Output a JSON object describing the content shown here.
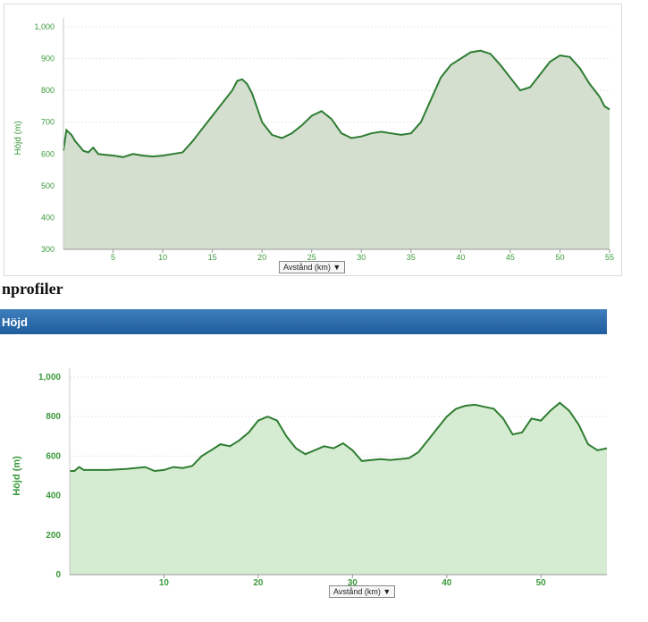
{
  "section_title": "nprofiler",
  "header_title": "Höjd",
  "colors": {
    "line": "#2e7d32",
    "fill1": "#d4dfcf",
    "fill2": "#d6ecd2",
    "tick": "#3a9a3a",
    "header": "#2a6aad"
  },
  "chart_data": [
    {
      "type": "area",
      "ylabel": "Höjd (m)",
      "xlabel_select": "Avstånd (km)",
      "select_arrow": "▼",
      "x_ticks": [
        5,
        10,
        15,
        20,
        25,
        30,
        35,
        40,
        45,
        50,
        55
      ],
      "y_ticks": [
        300,
        400,
        500,
        600,
        700,
        800,
        900,
        1000
      ],
      "y_tick_labels": [
        "300",
        "400",
        "500",
        "600",
        "700",
        "800",
        "900",
        "1,000"
      ],
      "xlim": [
        0,
        55
      ],
      "ylim": [
        300,
        1000
      ],
      "x": [
        0,
        0.3,
        0.8,
        1.2,
        1.6,
        2,
        2.5,
        3,
        3.5,
        4,
        5,
        6,
        7,
        8,
        9,
        10,
        11,
        12,
        13,
        14,
        15,
        16,
        17,
        17.5,
        18,
        18.5,
        19,
        20,
        21,
        22,
        23,
        24,
        25,
        26,
        27,
        28,
        29,
        30,
        31,
        32,
        33,
        34,
        35,
        36,
        37,
        38,
        39,
        40,
        41,
        42,
        43,
        44,
        45,
        46,
        47,
        48,
        49,
        50,
        51,
        52,
        53,
        54,
        54.5,
        55
      ],
      "values": [
        610,
        675,
        660,
        640,
        625,
        610,
        605,
        620,
        600,
        598,
        595,
        590,
        600,
        595,
        592,
        595,
        600,
        605,
        640,
        680,
        720,
        760,
        800,
        830,
        835,
        820,
        790,
        700,
        660,
        650,
        665,
        690,
        720,
        735,
        710,
        665,
        650,
        655,
        665,
        670,
        665,
        660,
        665,
        700,
        770,
        840,
        880,
        900,
        920,
        925,
        915,
        880,
        840,
        800,
        810,
        850,
        890,
        910,
        905,
        870,
        820,
        780,
        750,
        740
      ]
    },
    {
      "type": "area",
      "ylabel": "Höjd (m)",
      "xlabel_select": "Avstånd (km)",
      "select_arrow": "▼",
      "x_ticks": [
        10,
        20,
        30,
        40,
        50
      ],
      "y_ticks": [
        0,
        200,
        400,
        600,
        800,
        1000
      ],
      "y_tick_labels": [
        "0",
        "200",
        "400",
        "600",
        "800",
        "1,000"
      ],
      "xlim": [
        0,
        57
      ],
      "ylim": [
        0,
        1000
      ],
      "x": [
        0,
        0.5,
        1,
        1.5,
        2,
        4,
        6,
        8,
        9,
        10,
        11,
        12,
        13,
        14,
        15,
        16,
        17,
        18,
        19,
        20,
        21,
        22,
        23,
        24,
        25,
        26,
        27,
        28,
        29,
        30,
        31,
        32,
        33,
        34,
        35,
        36,
        37,
        38,
        39,
        40,
        41,
        42,
        43,
        44,
        45,
        46,
        47,
        48,
        49,
        50,
        51,
        52,
        53,
        54,
        55,
        56,
        57
      ],
      "values": [
        525,
        525,
        545,
        530,
        530,
        530,
        535,
        545,
        525,
        530,
        545,
        540,
        550,
        600,
        630,
        660,
        650,
        680,
        720,
        780,
        800,
        780,
        700,
        640,
        610,
        630,
        650,
        640,
        665,
        630,
        575,
        580,
        585,
        580,
        585,
        590,
        620,
        680,
        740,
        800,
        840,
        855,
        860,
        850,
        840,
        790,
        710,
        720,
        790,
        780,
        830,
        870,
        830,
        760,
        660,
        630,
        640
      ]
    }
  ]
}
